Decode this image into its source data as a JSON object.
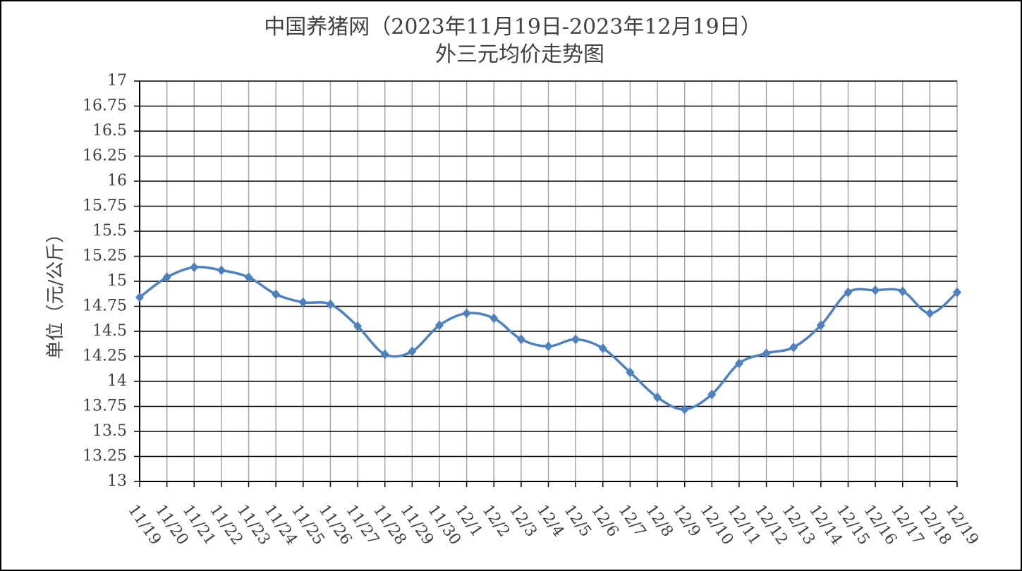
{
  "chart_data": {
    "type": "line",
    "title": "中国养猪网（2023年11月19日-2023年12月19日）",
    "subtitle": "外三元均价走势图",
    "y_label": "单位（元/公斤）",
    "categories": [
      "11/19",
      "11/20",
      "11/21",
      "11/22",
      "11/23",
      "11/24",
      "11/25",
      "11/26",
      "11/27",
      "11/28",
      "11/29",
      "11/30",
      "12/1",
      "12/2",
      "12/3",
      "12/4",
      "12/5",
      "12/6",
      "12/7",
      "12/8",
      "12/9",
      "12/10",
      "12/11",
      "12/12",
      "12/13",
      "12/14",
      "12/15",
      "12/16",
      "12/17",
      "12/18",
      "12/19"
    ],
    "series": [
      {
        "color": "#4f81bd",
        "values": [
          14.84,
          15.04,
          15.14,
          15.11,
          15.04,
          14.87,
          14.79,
          14.77,
          14.55,
          14.27,
          14.3,
          14.56,
          14.68,
          14.63,
          14.42,
          14.35,
          14.42,
          14.33,
          14.09,
          13.84,
          13.72,
          13.87,
          14.18,
          14.28,
          14.34,
          14.56,
          14.89,
          14.91,
          14.9,
          14.68,
          14.89
        ]
      }
    ],
    "ylim": [
      13,
      17
    ],
    "yticks": [
      13,
      13.25,
      13.5,
      13.75,
      14,
      14.25,
      14.5,
      14.75,
      15,
      15.25,
      15.5,
      15.75,
      16,
      16.25,
      16.5,
      16.75,
      17
    ],
    "grid": true,
    "smooth": true
  }
}
